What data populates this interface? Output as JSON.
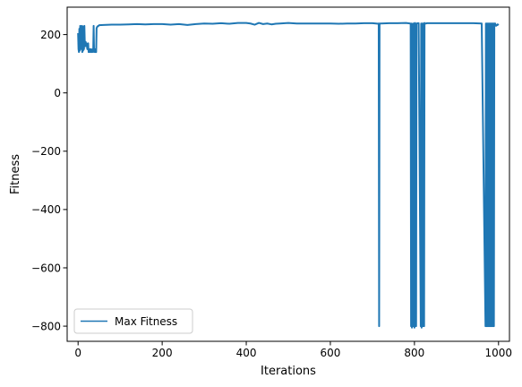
{
  "chart_data": {
    "type": "line",
    "title": "",
    "xlabel": "Iterations",
    "ylabel": "Fitness",
    "xlim": [
      -26,
      1026
    ],
    "ylim": [
      -852,
      294
    ],
    "xticks": [
      0,
      200,
      400,
      600,
      800,
      1000
    ],
    "yticks": [
      -800,
      -600,
      -400,
      -200,
      0,
      200
    ],
    "grid": false,
    "legend": "lower-left",
    "series": [
      {
        "name": "Max Fitness",
        "color": "#1f77b4",
        "x": [
          0,
          1,
          2,
          3,
          4,
          5,
          6,
          7,
          8,
          9,
          10,
          11,
          12,
          13,
          14,
          15,
          16,
          17,
          18,
          19,
          20,
          21,
          22,
          23,
          24,
          25,
          26,
          27,
          28,
          29,
          30,
          31,
          32,
          33,
          34,
          35,
          36,
          37,
          38,
          39,
          40,
          41,
          42,
          43,
          44,
          45,
          46,
          47,
          48,
          49,
          50,
          60,
          80,
          100,
          120,
          140,
          160,
          180,
          200,
          220,
          240,
          260,
          280,
          300,
          320,
          340,
          360,
          380,
          400,
          410,
          420,
          430,
          440,
          450,
          460,
          470,
          480,
          500,
          520,
          540,
          560,
          580,
          600,
          620,
          640,
          660,
          680,
          700,
          714,
          715,
          716,
          717,
          718,
          720,
          740,
          760,
          780,
          790,
          791,
          792,
          793,
          794,
          795,
          796,
          797,
          798,
          799,
          800,
          801,
          802,
          803,
          804,
          805,
          806,
          808,
          810,
          815,
          816,
          817,
          818,
          819,
          820,
          821,
          822,
          823,
          824,
          825,
          826,
          827,
          830,
          850,
          880,
          900,
          920,
          940,
          960,
          969,
          970,
          971,
          972,
          973,
          974,
          975,
          976,
          977,
          978,
          979,
          980,
          981,
          982,
          983,
          984,
          985,
          986,
          987,
          988,
          989,
          990,
          992,
          994,
          996,
          998,
          1000
        ],
        "y": [
          205,
          150,
          140,
          220,
          145,
          230,
          150,
          210,
          165,
          230,
          140,
          228,
          145,
          225,
          150,
          230,
          170,
          160,
          175,
          165,
          170,
          160,
          150,
          165,
          170,
          140,
          145,
          140,
          150,
          145,
          140,
          150,
          145,
          140,
          140,
          150,
          145,
          230,
          140,
          145,
          150,
          140,
          145,
          140,
          222,
          225,
          228,
          228,
          230,
          230,
          232,
          233,
          234,
          234,
          235,
          236,
          235,
          236,
          236,
          234,
          236,
          233,
          236,
          238,
          237,
          239,
          237,
          240,
          240,
          238,
          234,
          240,
          236,
          238,
          235,
          237,
          238,
          240,
          238,
          238,
          238,
          238,
          238,
          237,
          238,
          238,
          239,
          239,
          237,
          238,
          -800,
          235,
          238,
          238,
          239,
          239,
          240,
          238,
          235,
          -800,
          238,
          -805,
          235,
          -800,
          238,
          -800,
          238,
          -805,
          240,
          -800,
          238,
          -800,
          238,
          238,
          239,
          239,
          -800,
          238,
          -805,
          238,
          -800,
          238,
          -800,
          238,
          -800,
          240,
          238,
          238,
          238,
          239,
          239,
          239,
          239,
          239,
          239,
          238,
          -800,
          238,
          -800,
          238,
          -800,
          238,
          -800,
          238,
          -800,
          238,
          -800,
          238,
          -800,
          238,
          -800,
          238,
          -800,
          238,
          -800,
          238,
          -800,
          238,
          238,
          230,
          232,
          235,
          232
        ]
      }
    ]
  }
}
